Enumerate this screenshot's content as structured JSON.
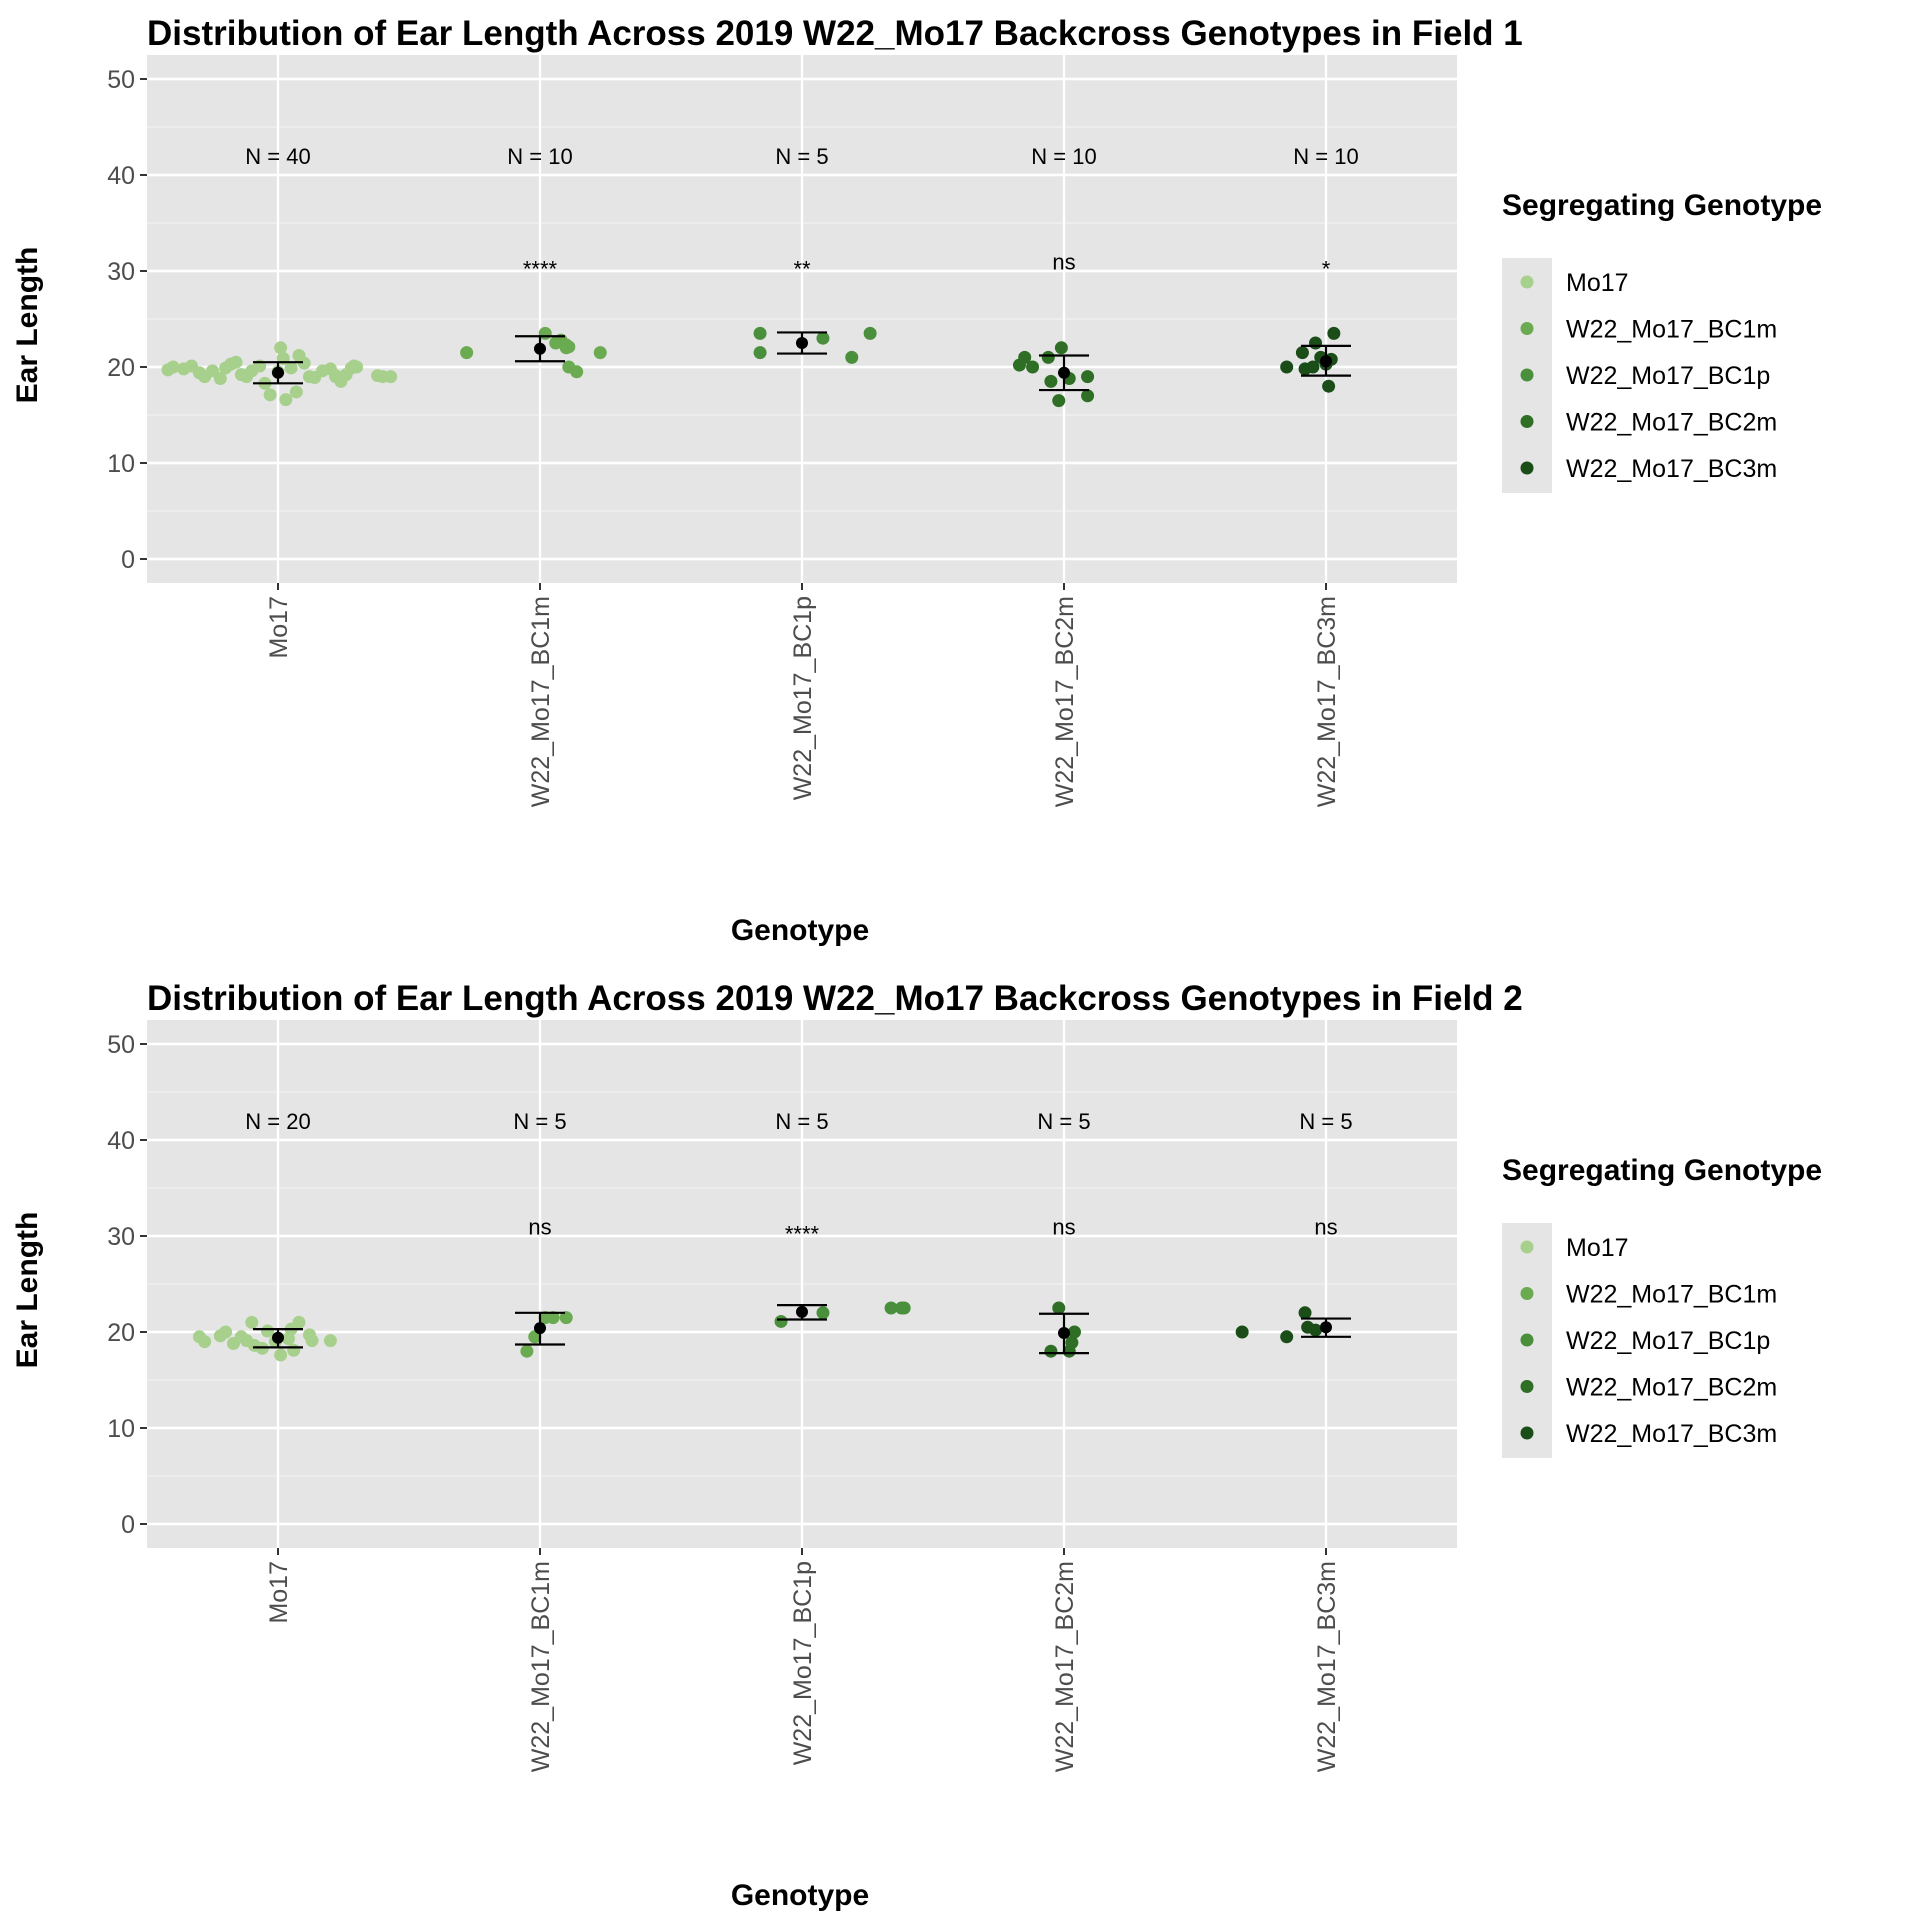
{
  "colors": {
    "panel_bg": "#e5e5e5",
    "grid_major": "#ffffff",
    "grid_minor": "#f2f2f2",
    "mean_point": "#000000",
    "error_bar": "#000000",
    "tick_text": "#4d4d4d",
    "genotype_palette": {
      "Mo17": "#a8d08d",
      "W22_Mo17_BC1m": "#6aaa50",
      "W22_Mo17_BC1p": "#4a8f3c",
      "W22_Mo17_BC2m": "#2e6e25",
      "W22_Mo17_BC3m": "#1a4d18"
    }
  },
  "legend": {
    "title": "Segregating Genotype",
    "items": [
      "Mo17",
      "W22_Mo17_BC1m",
      "W22_Mo17_BC1p",
      "W22_Mo17_BC2m",
      "W22_Mo17_BC3m"
    ]
  },
  "chart_data": [
    {
      "type": "scatter",
      "title": "Distribution of Ear Length Across 2019 W22_Mo17 Backcross Genotypes in Field 1",
      "xlabel": "Genotype",
      "ylabel": "Ear Length",
      "ylim": [
        -2.5,
        52.5
      ],
      "yticks": [
        0,
        10,
        20,
        30,
        40,
        50
      ],
      "categories": [
        "Mo17",
        "W22_Mo17_BC1m",
        "W22_Mo17_BC1p",
        "W22_Mo17_BC2m",
        "W22_Mo17_BC3m"
      ],
      "n_labels": [
        "N = 40",
        "N = 10",
        "N = 5",
        "N = 10",
        "N = 10"
      ],
      "significance": [
        "",
        "****",
        "**",
        "ns",
        "*"
      ],
      "means": [
        19.4,
        21.9,
        22.5,
        19.4,
        20.6
      ],
      "error_low": [
        18.3,
        20.6,
        21.4,
        17.6,
        19.1
      ],
      "error_high": [
        20.5,
        23.2,
        23.6,
        21.2,
        22.2
      ],
      "points": [
        [
          {
            "x": -0.42,
            "y": 19.7
          },
          {
            "x": -0.4,
            "y": 20.0
          },
          {
            "x": -0.36,
            "y": 19.8
          },
          {
            "x": -0.33,
            "y": 20.1
          },
          {
            "x": -0.3,
            "y": 19.4
          },
          {
            "x": -0.28,
            "y": 19.0
          },
          {
            "x": -0.25,
            "y": 19.6
          },
          {
            "x": -0.22,
            "y": 18.8
          },
          {
            "x": -0.2,
            "y": 19.9
          },
          {
            "x": -0.18,
            "y": 20.3
          },
          {
            "x": -0.16,
            "y": 20.5
          },
          {
            "x": -0.14,
            "y": 19.2
          },
          {
            "x": -0.12,
            "y": 19.0
          },
          {
            "x": -0.1,
            "y": 19.6
          },
          {
            "x": -0.07,
            "y": 20.1
          },
          {
            "x": -0.05,
            "y": 18.3
          },
          {
            "x": -0.03,
            "y": 17.1
          },
          {
            "x": 0.0,
            "y": 19.5
          },
          {
            "x": 0.01,
            "y": 22.0
          },
          {
            "x": 0.02,
            "y": 20.9
          },
          {
            "x": 0.03,
            "y": 16.6
          },
          {
            "x": 0.05,
            "y": 19.9
          },
          {
            "x": 0.07,
            "y": 17.4
          },
          {
            "x": 0.08,
            "y": 21.2
          },
          {
            "x": 0.1,
            "y": 20.4
          },
          {
            "x": 0.12,
            "y": 19.0
          },
          {
            "x": 0.14,
            "y": 18.9
          },
          {
            "x": 0.17,
            "y": 19.6
          },
          {
            "x": 0.2,
            "y": 19.8
          },
          {
            "x": 0.22,
            "y": 19.1
          },
          {
            "x": 0.24,
            "y": 18.7
          },
          {
            "x": 0.22,
            "y": 19.0
          },
          {
            "x": 0.24,
            "y": 18.5
          },
          {
            "x": 0.26,
            "y": 19.2
          },
          {
            "x": 0.28,
            "y": 19.9
          },
          {
            "x": 0.3,
            "y": 20.0
          },
          {
            "x": 0.29,
            "y": 20.1
          },
          {
            "x": 0.38,
            "y": 19.1
          },
          {
            "x": 0.4,
            "y": 19.0
          },
          {
            "x": 0.43,
            "y": 19.0
          }
        ],
        [
          {
            "x": -0.28,
            "y": 21.5
          },
          {
            "x": 0.02,
            "y": 23.5
          },
          {
            "x": 0.06,
            "y": 22.5
          },
          {
            "x": 0.08,
            "y": 22.8
          },
          {
            "x": 0.1,
            "y": 22.3
          },
          {
            "x": 0.1,
            "y": 22.0
          },
          {
            "x": 0.11,
            "y": 22.1
          },
          {
            "x": 0.11,
            "y": 20.0
          },
          {
            "x": 0.14,
            "y": 19.5
          },
          {
            "x": 0.23,
            "y": 21.5
          }
        ],
        [
          {
            "x": -0.16,
            "y": 23.5
          },
          {
            "x": -0.16,
            "y": 21.5
          },
          {
            "x": 0.08,
            "y": 23.0
          },
          {
            "x": 0.19,
            "y": 21.0
          },
          {
            "x": 0.26,
            "y": 23.5
          }
        ],
        [
          {
            "x": -0.17,
            "y": 20.2
          },
          {
            "x": -0.15,
            "y": 21.0
          },
          {
            "x": -0.12,
            "y": 20.0
          },
          {
            "x": -0.06,
            "y": 21.0
          },
          {
            "x": -0.05,
            "y": 18.5
          },
          {
            "x": -0.02,
            "y": 16.5
          },
          {
            "x": -0.01,
            "y": 22.0
          },
          {
            "x": 0.02,
            "y": 18.8
          },
          {
            "x": 0.09,
            "y": 17.0
          },
          {
            "x": 0.09,
            "y": 19.0
          }
        ],
        [
          {
            "x": -0.15,
            "y": 20.0
          },
          {
            "x": -0.09,
            "y": 21.5
          },
          {
            "x": -0.08,
            "y": 19.8
          },
          {
            "x": -0.05,
            "y": 20.0
          },
          {
            "x": -0.04,
            "y": 22.5
          },
          {
            "x": -0.02,
            "y": 21.0
          },
          {
            "x": 0.0,
            "y": 20.3
          },
          {
            "x": 0.01,
            "y": 18.0
          },
          {
            "x": 0.02,
            "y": 20.8
          },
          {
            "x": 0.03,
            "y": 23.5
          }
        ]
      ]
    },
    {
      "type": "scatter",
      "title": "Distribution of Ear Length Across 2019 W22_Mo17 Backcross Genotypes in Field 2",
      "xlabel": "Genotype",
      "ylabel": "Ear Length",
      "ylim": [
        -2.5,
        52.5
      ],
      "yticks": [
        0,
        10,
        20,
        30,
        40,
        50
      ],
      "categories": [
        "Mo17",
        "W22_Mo17_BC1m",
        "W22_Mo17_BC1p",
        "W22_Mo17_BC2m",
        "W22_Mo17_BC3m"
      ],
      "n_labels": [
        "N = 20",
        "N = 5",
        "N = 5",
        "N = 5",
        "N = 5"
      ],
      "significance": [
        "",
        "ns",
        "****",
        "ns",
        "ns"
      ],
      "means": [
        19.4,
        20.4,
        22.1,
        19.9,
        20.5
      ],
      "error_low": [
        18.4,
        18.7,
        21.3,
        17.8,
        19.5
      ],
      "error_high": [
        20.3,
        22.0,
        22.8,
        21.9,
        21.4
      ],
      "points": [
        [
          {
            "x": -0.3,
            "y": 19.5
          },
          {
            "x": -0.28,
            "y": 19.0
          },
          {
            "x": -0.22,
            "y": 19.6
          },
          {
            "x": -0.2,
            "y": 20.0
          },
          {
            "x": -0.17,
            "y": 18.8
          },
          {
            "x": -0.14,
            "y": 19.5
          },
          {
            "x": -0.12,
            "y": 19.1
          },
          {
            "x": -0.1,
            "y": 21.0
          },
          {
            "x": -0.09,
            "y": 18.6
          },
          {
            "x": -0.06,
            "y": 18.3
          },
          {
            "x": -0.04,
            "y": 20.1
          },
          {
            "x": -0.01,
            "y": 19.0
          },
          {
            "x": 0.01,
            "y": 17.6
          },
          {
            "x": 0.04,
            "y": 19.3
          },
          {
            "x": 0.05,
            "y": 20.3
          },
          {
            "x": 0.06,
            "y": 18.1
          },
          {
            "x": 0.08,
            "y": 21.0
          },
          {
            "x": 0.12,
            "y": 19.7
          },
          {
            "x": 0.13,
            "y": 19.1
          },
          {
            "x": 0.2,
            "y": 19.1
          }
        ],
        [
          {
            "x": -0.05,
            "y": 18.0
          },
          {
            "x": -0.02,
            "y": 19.5
          },
          {
            "x": 0.02,
            "y": 21.5
          },
          {
            "x": 0.05,
            "y": 21.5
          },
          {
            "x": 0.1,
            "y": 21.5
          }
        ],
        [
          {
            "x": -0.08,
            "y": 21.1
          },
          {
            "x": 0.08,
            "y": 22.0
          },
          {
            "x": 0.34,
            "y": 22.5
          },
          {
            "x": 0.38,
            "y": 22.5
          },
          {
            "x": 0.39,
            "y": 22.5
          }
        ],
        [
          {
            "x": -0.05,
            "y": 18.0
          },
          {
            "x": -0.02,
            "y": 22.5
          },
          {
            "x": 0.02,
            "y": 18.0
          },
          {
            "x": 0.03,
            "y": 18.9
          },
          {
            "x": 0.04,
            "y": 20.0
          }
        ],
        [
          {
            "x": -0.32,
            "y": 20.0
          },
          {
            "x": -0.15,
            "y": 19.5
          },
          {
            "x": -0.08,
            "y": 22.0
          },
          {
            "x": -0.07,
            "y": 20.5
          },
          {
            "x": -0.04,
            "y": 20.2
          }
        ]
      ]
    }
  ]
}
